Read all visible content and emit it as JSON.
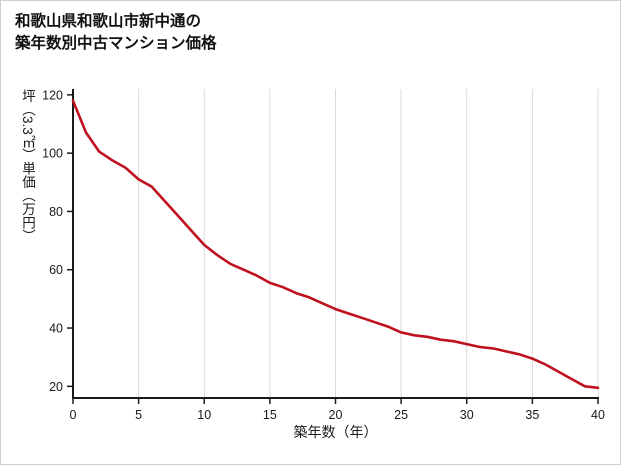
{
  "page": {
    "background": "#ffffff",
    "border_color": "#cfcfcf"
  },
  "title": {
    "line1": "和歌山県和歌山市新中通の",
    "line2": "築年数別中古マンション価格"
  },
  "chart_data": {
    "type": "line",
    "title": "和歌山県和歌山市新中通の築年数別中古マンション価格",
    "xlabel": "築年数（年）",
    "ylabel": "坪（3.3㎡）単価（万円）",
    "x": [
      0,
      1,
      2,
      3,
      4,
      5,
      6,
      7,
      8,
      9,
      10,
      11,
      12,
      13,
      14,
      15,
      16,
      17,
      18,
      19,
      20,
      21,
      22,
      23,
      24,
      25,
      26,
      27,
      28,
      29,
      30,
      31,
      32,
      33,
      34,
      35,
      36,
      37,
      38,
      39,
      40
    ],
    "y": [
      118,
      107,
      100.5,
      97.5,
      95,
      91,
      88.5,
      83.5,
      78.5,
      73.5,
      68.5,
      65,
      62,
      60,
      58,
      55.5,
      54,
      52,
      50.5,
      48.5,
      46.5,
      45,
      43.5,
      42,
      40.5,
      38.5,
      37.5,
      37,
      36,
      35.5,
      34.5,
      33.5,
      33,
      32,
      31,
      29.5,
      27.5,
      25,
      22.5,
      20,
      19.5
    ],
    "xlim": [
      0,
      40
    ],
    "ylim": [
      16,
      122
    ],
    "xticks": [
      0,
      5,
      10,
      15,
      20,
      25,
      30,
      35,
      40
    ],
    "yticks": [
      20,
      40,
      60,
      80,
      100,
      120
    ],
    "grid": "vertical-only",
    "legend": "none",
    "line_color": "#c0111f",
    "axis_color": "#1a1a1a",
    "grid_color": "#d9d9d9"
  }
}
